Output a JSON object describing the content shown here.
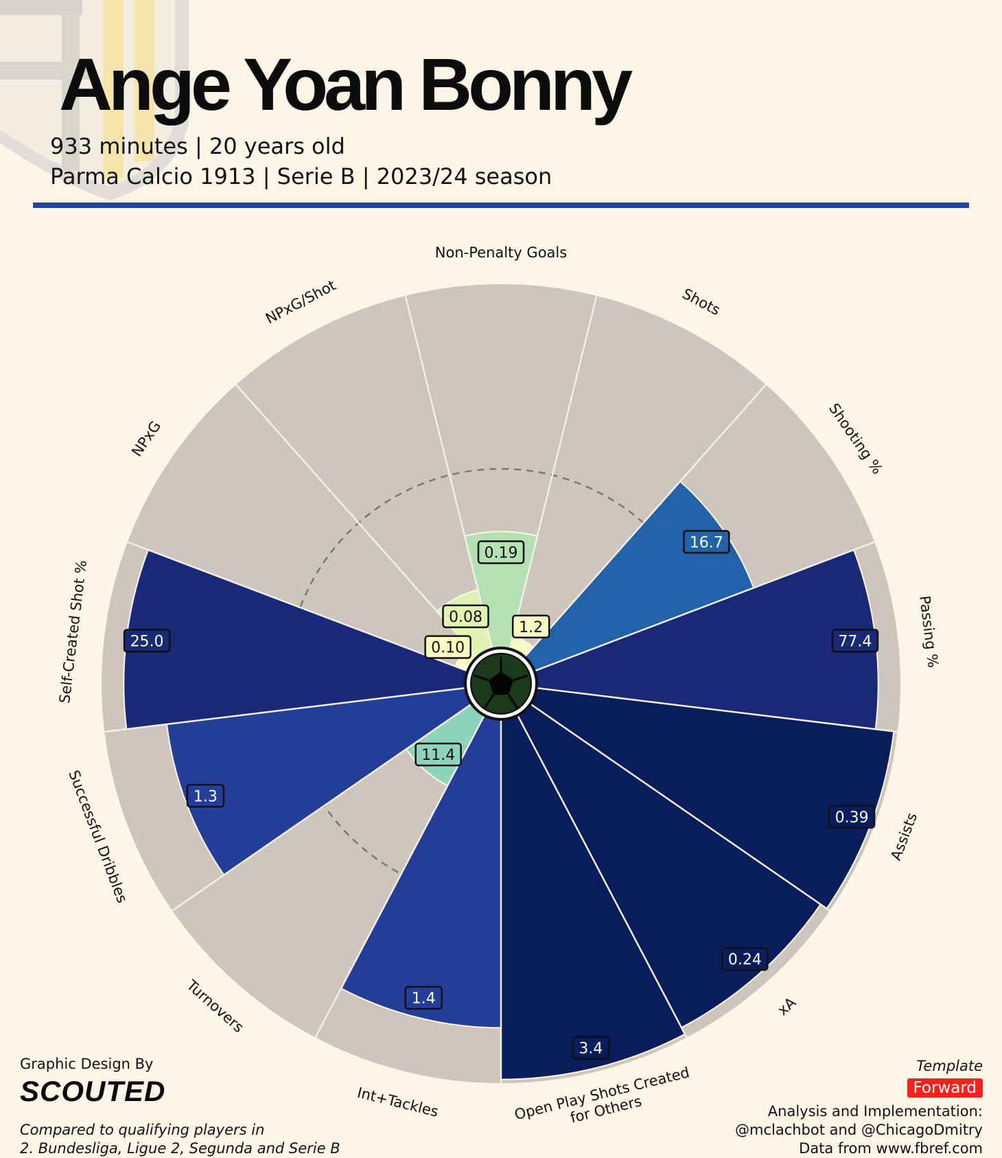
{
  "header": {
    "title": "Ange Yoan Bonny",
    "subtitle_line1": "933 minutes | 20 years old",
    "subtitle_line2": "Parma Calcio 1913 | Serie B | 2023/24 season",
    "rule_color": "#2047a0"
  },
  "chart_data": {
    "type": "radial-bar",
    "percentile_scale": [
      0,
      100
    ],
    "reference_ring_percentile": 50,
    "background_color": "#ccc6bc",
    "categories": [
      {
        "label": "Non-Penalty Goals",
        "value": "0.19",
        "percentile": 33,
        "color": "#b5e0b4",
        "label_dark": true
      },
      {
        "label": "Shots",
        "value": "1.2",
        "percentile": 5,
        "color": "#f7fbc1",
        "label_dark": true
      },
      {
        "label": "Shooting %",
        "value": "16.7",
        "percentile": 65,
        "color": "#2262a9",
        "label_dark": false
      },
      {
        "label": "Passing %",
        "value": "77.4",
        "percentile": 94,
        "color": "#1a2977",
        "label_dark": false
      },
      {
        "label": "Assists",
        "value": "0.39",
        "percentile": 99,
        "color": "#091d5c",
        "label_dark": false
      },
      {
        "label": "xA",
        "value": "0.24",
        "percentile": 97,
        "color": "#091d5c",
        "label_dark": false
      },
      {
        "label": "Open Play Shots Created\nfor Others",
        "value": "3.4",
        "percentile": 99,
        "color": "#091d5c",
        "label_dark": false
      },
      {
        "label": "Int+Tackles",
        "value": "1.4",
        "percentile": 85,
        "color": "#233d99",
        "label_dark": false
      },
      {
        "label": "Turnovers",
        "value": "11.4",
        "percentile": 23,
        "color": "#8dd4bb",
        "label_dark": true
      },
      {
        "label": "Successful Dribbles",
        "value": "1.3",
        "percentile": 83,
        "color": "#233d99",
        "label_dark": false
      },
      {
        "label": "Self-Created Shot %",
        "value": "25.0",
        "percentile": 94,
        "color": "#1a2977",
        "label_dark": false
      },
      {
        "label": "NPxG",
        "value": "0.10",
        "percentile": 5,
        "color": "#f7fbc1",
        "label_dark": true
      },
      {
        "label": "NPxG/Shot",
        "value": "0.08",
        "percentile": 18,
        "color": "#e0f3b1",
        "label_dark": true
      }
    ]
  },
  "footer": {
    "credit_label": "Graphic Design By",
    "credit_logo": "SCOUTED",
    "comparison_line1": "Compared to qualifying players in",
    "comparison_line2": "2. Bundesliga, Ligue 2, Segunda and Serie B",
    "template_label": "Template",
    "template_value": "Forward",
    "impl_label": "Analysis and Implementation:",
    "impl_names": "@mclachbot and @ChicagoDmitry",
    "source": "Data from www.fbref.com"
  }
}
